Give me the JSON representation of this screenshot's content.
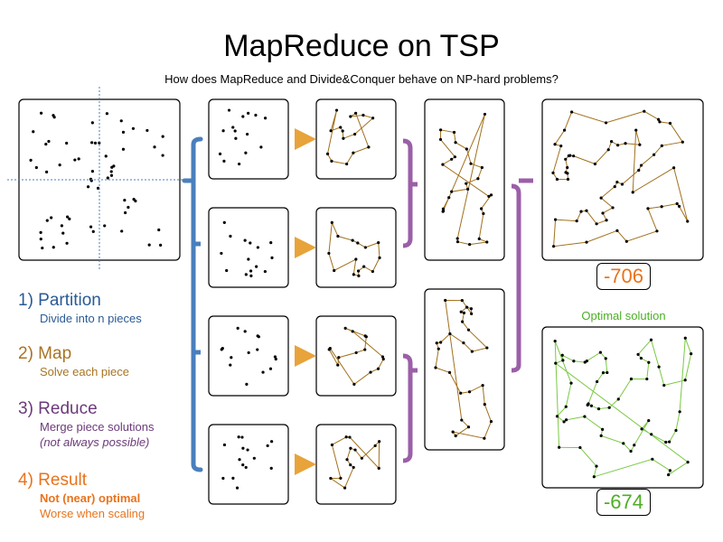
{
  "title": "MapReduce on TSP",
  "subtitle": "How does MapReduce and Divide&Conquer behave on NP-hard problems?",
  "steps": [
    {
      "heading": "1) Partition",
      "lines": [
        "Divide into n pieces"
      ]
    },
    {
      "heading": "2) Map",
      "lines": [
        "Solve each piece"
      ]
    },
    {
      "heading": "3) Reduce",
      "lines": [
        "Merge piece solutions",
        "(not always possible)"
      ]
    },
    {
      "heading": "4) Result",
      "lines": [
        "Not (near) optimal",
        "Worse when scaling"
      ]
    }
  ],
  "result_score": "-706",
  "optimal_label": "Optimal solution",
  "optimal_score": "-674",
  "colors": {
    "partition": "#4a7fbd",
    "map": "#e8a33a",
    "reduce": "#9b5fa8",
    "route": "#a0701c",
    "merge_edge": "#6b3fa0",
    "optimal_route": "#7ac943",
    "result_text": "#e8731c",
    "optimal_text": "#4caf24"
  }
}
